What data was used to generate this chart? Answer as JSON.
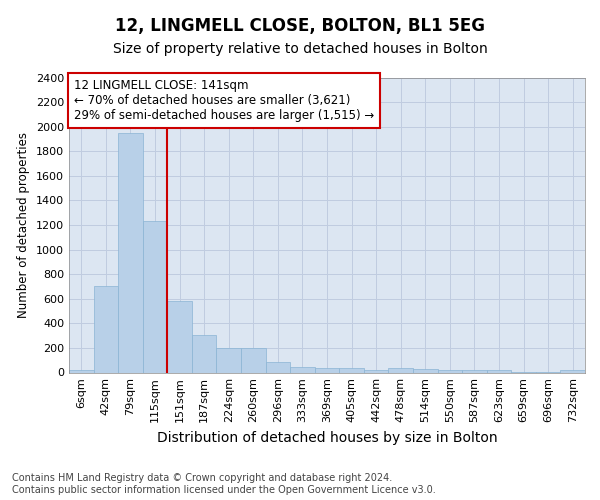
{
  "title": "12, LINGMELL CLOSE, BOLTON, BL1 5EG",
  "subtitle": "Size of property relative to detached houses in Bolton",
  "xlabel": "Distribution of detached houses by size in Bolton",
  "ylabel": "Number of detached properties",
  "categories": [
    "6sqm",
    "42sqm",
    "79sqm",
    "115sqm",
    "151sqm",
    "187sqm",
    "224sqm",
    "260sqm",
    "296sqm",
    "333sqm",
    "369sqm",
    "405sqm",
    "442sqm",
    "478sqm",
    "514sqm",
    "550sqm",
    "587sqm",
    "623sqm",
    "659sqm",
    "696sqm",
    "732sqm"
  ],
  "values": [
    20,
    700,
    1950,
    1230,
    580,
    305,
    200,
    200,
    85,
    45,
    35,
    35,
    20,
    35,
    25,
    20,
    20,
    20,
    5,
    5,
    20
  ],
  "bar_color": "#b8d0e8",
  "bar_edge_color": "#8ab4d4",
  "grid_color": "#c0cce0",
  "background_color": "#dce6f2",
  "vline_color": "#cc0000",
  "annotation_box_edge": "#cc0000",
  "annotation_line1": "12 LINGMELL CLOSE: 141sqm",
  "annotation_line2": "← 70% of detached houses are smaller (3,621)",
  "annotation_line3": "29% of semi-detached houses are larger (1,515) →",
  "ylim": [
    0,
    2400
  ],
  "yticks": [
    0,
    200,
    400,
    600,
    800,
    1000,
    1200,
    1400,
    1600,
    1800,
    2000,
    2200,
    2400
  ],
  "footer_text": "Contains HM Land Registry data © Crown copyright and database right 2024.\nContains public sector information licensed under the Open Government Licence v3.0.",
  "title_fontsize": 12,
  "subtitle_fontsize": 10,
  "ylabel_fontsize": 8.5,
  "xlabel_fontsize": 10,
  "tick_fontsize": 8,
  "annotation_fontsize": 8.5,
  "footer_fontsize": 7
}
